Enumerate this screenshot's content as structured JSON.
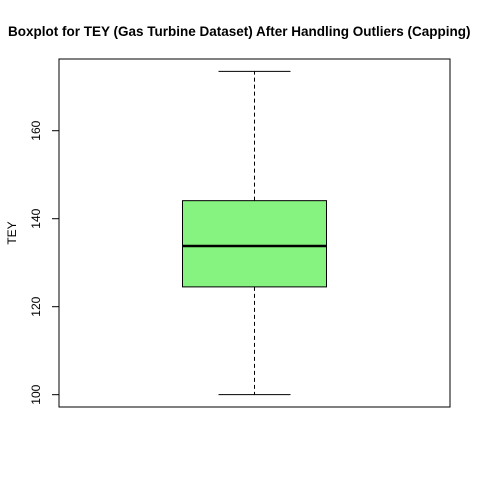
{
  "chart_data": {
    "type": "boxplot",
    "title": "Boxplot for TEY (Gas Turbine Dataset) After Handling Outliers (Capping)",
    "xlabel": "",
    "ylabel": "TEY",
    "ylim": [
      97.2,
      176.3
    ],
    "yticks": [
      100,
      120,
      140,
      160
    ],
    "grid": false,
    "legend": "none",
    "series": [
      {
        "min": 100.0,
        "q1": 124.5,
        "median": 133.8,
        "q3": 144.1,
        "max": 173.5,
        "fill_color": "#86F27F"
      }
    ]
  },
  "colors": {
    "box_fill": "#86F27F",
    "stroke": "#000000",
    "background": "#ffffff"
  }
}
